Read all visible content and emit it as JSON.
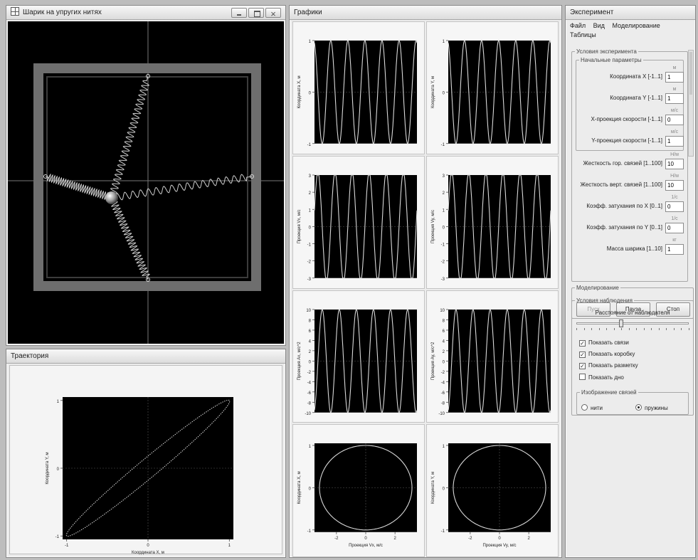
{
  "windows": {
    "scene": {
      "title": "Шарик на упругих нитях",
      "icon": "app-grid-icon"
    },
    "trajectory": {
      "title": "Траектория"
    },
    "graphs": {
      "title": "Графики"
    },
    "experiment": {
      "title": "Эксперимент"
    }
  },
  "menu": {
    "items": [
      "Файл",
      "Вид",
      "Моделирование",
      "Таблицы"
    ]
  },
  "conditions": {
    "legend": "Условия эксперимента",
    "initial_legend": "Начальные параметры",
    "params": [
      {
        "label": "Координата X [-1..1]",
        "unit": "м",
        "value": "1"
      },
      {
        "label": "Координата Y [-1..1]",
        "unit": "м",
        "value": "1"
      },
      {
        "label": "X-проекция скорости [-1..1]",
        "unit": "м/с",
        "value": "0"
      },
      {
        "label": "Y-проекция скорости [-1..1]",
        "unit": "м/с",
        "value": "1"
      }
    ],
    "params2": [
      {
        "label": "Жесткость гор. связей [1..100]",
        "unit": "Н/м",
        "value": "10"
      },
      {
        "label": "Жесткость верт. связей [1..100]",
        "unit": "Н/м",
        "value": "10"
      },
      {
        "label": "Коэфф. затухания по X [0..1]",
        "unit": "1/с",
        "value": "0"
      },
      {
        "label": "Коэфф. затухания по Y [0..1]",
        "unit": "1/с",
        "value": "0"
      },
      {
        "label": "Масса шарика [1..10]",
        "unit": "кг",
        "value": "1"
      }
    ]
  },
  "modeling": {
    "legend": "Моделирование",
    "start": "Пуск",
    "pause": "Пауза",
    "stop": "Стоп"
  },
  "observation": {
    "legend": "Условия наблюдения",
    "distance_label": "Расстояние от наблюдателя",
    "distance_fraction": 0.4,
    "checks": [
      {
        "label": "Показать связи",
        "checked": true
      },
      {
        "label": "Показать коробку",
        "checked": true
      },
      {
        "label": "Показать разметку",
        "checked": true
      },
      {
        "label": "Показать дно",
        "checked": false
      }
    ],
    "links_legend": "Изображение связей",
    "radio_thread": "нити",
    "radio_spring": "пружины",
    "selected": "spring"
  },
  "colors": {
    "plot_bg": "#000000",
    "curve": "#d8d8d8",
    "frame": "#6e6e6e"
  },
  "chart_data": [
    {
      "type": "line",
      "xlabel": "",
      "ylabel": "Координата X, м",
      "ylim": [
        -1,
        1
      ],
      "yticks": [
        "1",
        "0",
        "-1"
      ],
      "function": "cos",
      "amplitude": 1,
      "cycles": 6
    },
    {
      "type": "line",
      "xlabel": "",
      "ylabel": "Координата Y, м",
      "ylim": [
        -1,
        1
      ],
      "yticks": [
        "1",
        "0",
        "-1"
      ],
      "function": "cos",
      "amplitude": 1,
      "cycles": 6
    },
    {
      "type": "line",
      "xlabel": "",
      "ylabel": "Проекция Vx, м/с",
      "ylim": [
        -3,
        3
      ],
      "yticks": [
        "3",
        "2",
        "1",
        "0",
        "-1",
        "-2",
        "-3"
      ],
      "function": "sin",
      "amplitude": 3.16,
      "cycles": 6
    },
    {
      "type": "line",
      "xlabel": "",
      "ylabel": "Проекция Vy, м/с",
      "ylim": [
        -3,
        3
      ],
      "yticks": [
        "3",
        "2",
        "1",
        "0",
        "-1",
        "-2",
        "-3"
      ],
      "function": "sin",
      "amplitude": 3.16,
      "cycles": 6
    },
    {
      "type": "line",
      "xlabel": "",
      "ylabel": "Проекция Ax, м/с^2",
      "ylim": [
        -10,
        10
      ],
      "yticks": [
        "10",
        "8",
        "6",
        "4",
        "2",
        "0",
        "-2",
        "-4",
        "-6",
        "-8",
        "-10"
      ],
      "function": "cos",
      "amplitude": -10,
      "cycles": 6
    },
    {
      "type": "line",
      "xlabel": "",
      "ylabel": "Проекция Ay, м/с^2",
      "ylim": [
        -10,
        10
      ],
      "yticks": [
        "10",
        "8",
        "6",
        "4",
        "2",
        "0",
        "-2",
        "-4",
        "-6",
        "-8",
        "-10"
      ],
      "function": "cos",
      "amplitude": -10,
      "cycles": 6
    },
    {
      "type": "line",
      "xlabel": "Проекция Vx, м/с",
      "ylabel": "Координата X, м",
      "xlim": [
        -3.5,
        3.5
      ],
      "ylim": [
        -1.05,
        1.05
      ],
      "xticks": [
        "-2",
        "0",
        "2"
      ],
      "yticks": [
        "1",
        "0",
        "-1"
      ],
      "function": "phase",
      "ax": 3.16,
      "ay": 1
    },
    {
      "type": "line",
      "xlabel": "Проекция Vy, м/с",
      "ylabel": "Координата Y, м",
      "xlim": [
        -3.5,
        3.5
      ],
      "ylim": [
        -1.05,
        1.05
      ],
      "xticks": [
        "-2",
        "0",
        "2"
      ],
      "yticks": [
        "1",
        "0",
        "-1"
      ],
      "function": "phase",
      "ax": 3.16,
      "ay": 1
    },
    {
      "type": "line",
      "xlabel": "Координата X, м",
      "ylabel": "Координата Y, м",
      "xlim": [
        -1.05,
        1.05
      ],
      "ylim": [
        -1.05,
        1.05
      ],
      "xticks": [
        "-1",
        "0",
        "1"
      ],
      "yticks": [
        "1",
        "0",
        "-1"
      ],
      "function": "ellipse",
      "diag": 1,
      "width": 0.09
    }
  ]
}
